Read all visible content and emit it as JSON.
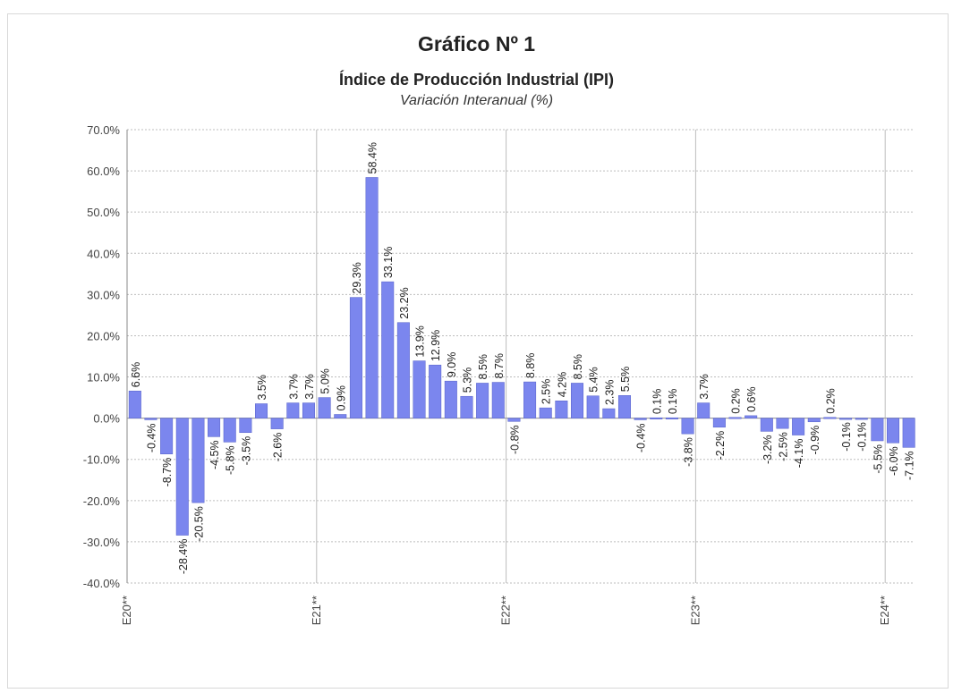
{
  "chart_data": {
    "type": "bar",
    "title": "Gráfico Nº 1",
    "subtitle": "Índice de Producción Industrial (IPI)",
    "subsubtitle": "Variación Interanual (%)",
    "ylim": [
      -40,
      70
    ],
    "y_ticks": [
      "70.0%",
      "60.0%",
      "50.0%",
      "40.0%",
      "30.0%",
      "20.0%",
      "10.0%",
      "0.0%",
      "-10.0%",
      "-20.0%",
      "-30.0%",
      "-40.0%"
    ],
    "x_tick_labels": [
      {
        "index": 0,
        "label": "E20**"
      },
      {
        "index": 12,
        "label": "E21**"
      },
      {
        "index": 24,
        "label": "E22**"
      },
      {
        "index": 36,
        "label": "E23**"
      },
      {
        "index": 48,
        "label": "E24**"
      }
    ],
    "grid": true,
    "bar_color": "#7b86ee",
    "values": [
      6.6,
      -0.4,
      -8.7,
      -28.4,
      -20.5,
      -4.5,
      -5.8,
      -3.5,
      3.5,
      -2.6,
      3.7,
      3.7,
      5.0,
      0.9,
      29.3,
      58.4,
      33.1,
      23.2,
      13.9,
      12.9,
      9.0,
      5.3,
      8.5,
      8.7,
      -0.8,
      8.8,
      2.5,
      4.2,
      8.5,
      5.4,
      2.3,
      5.5,
      -0.4,
      0.1,
      0.1,
      -3.8,
      3.7,
      -2.2,
      0.2,
      0.6,
      -3.2,
      -2.5,
      -4.1,
      -0.9,
      0.2,
      -0.1,
      -0.1,
      -5.5,
      -6.0,
      -7.1
    ],
    "data_labels": [
      "6.6%",
      "-0.4%",
      "-8.7%",
      "-28.4%",
      "-20.5%",
      "-4.5%",
      "-5.8%",
      "-3.5%",
      "3.5%",
      "-2.6%",
      "3.7%",
      "3.7%",
      "5.0%",
      "0.9%",
      "29.3%",
      "58.4%",
      "33.1%",
      "23.2%",
      "13.9%",
      "12.9%",
      "9.0%",
      "5.3%",
      "8.5%",
      "8.7%",
      "-0.8%",
      "8.8%",
      "2.5%",
      "4.2%",
      "8.5%",
      "5.4%",
      "2.3%",
      "5.5%",
      "-0.4%",
      "0.1%",
      "0.1%",
      "-3.8%",
      "3.7%",
      "-2.2%",
      "0.2%",
      "0.6%",
      "-3.2%",
      "-2.5%",
      "-4.1%",
      "-0.9%",
      "0.2%",
      "-0.1%",
      "-0.1%",
      "-5.5%",
      "-6.0%",
      "-7.1%"
    ]
  }
}
